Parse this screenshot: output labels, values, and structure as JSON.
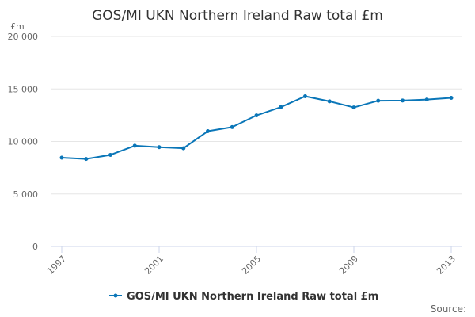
{
  "chart_data": {
    "type": "line",
    "title": "GOS/MI UKN Northern Ireland Raw total £m",
    "ylabel": "£m",
    "xlabel": "",
    "x": [
      1997,
      1998,
      1999,
      2000,
      2001,
      2002,
      2003,
      2004,
      2005,
      2006,
      2007,
      2008,
      2009,
      2010,
      2011,
      2012,
      2013
    ],
    "series": [
      {
        "name": "GOS/MI UKN Northern Ireland Raw total £m",
        "values": [
          8450,
          8330,
          8720,
          9590,
          9450,
          9350,
          10980,
          11370,
          12480,
          13270,
          14300,
          13820,
          13240,
          13880,
          13900,
          13990,
          14150
        ]
      }
    ],
    "ylim": [
      0,
      20000
    ],
    "yticks": [
      0,
      5000,
      10000,
      15000,
      20000
    ],
    "ytick_labels": [
      "0",
      "5 000",
      "10 000",
      "15 000",
      "20 000"
    ],
    "xticks": [
      1997,
      2001,
      2005,
      2009,
      2013
    ],
    "xtick_labels": [
      "1997",
      "2001",
      "2005",
      "2009",
      "2013"
    ],
    "grid": true,
    "legend": "bottom-center",
    "series_color": "#0a76b8",
    "source_text": "Source:"
  }
}
